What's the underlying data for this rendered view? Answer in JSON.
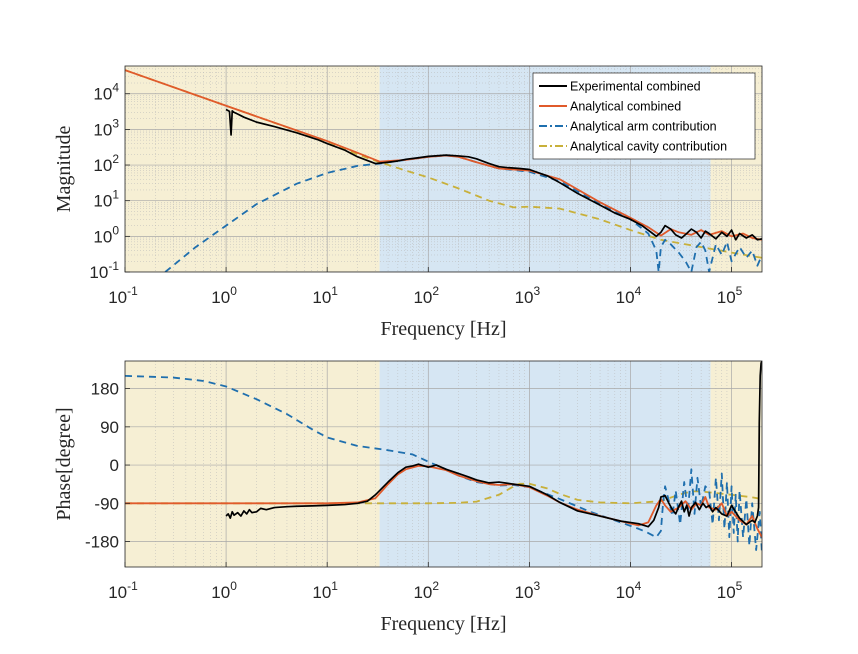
{
  "chart_data": [
    {
      "type": "line",
      "xscale": "log",
      "yscale": "log",
      "xlabel": "Frequency [Hz]",
      "ylabel": "Magnitude",
      "xlim": [
        0.1,
        200000
      ],
      "ylim": [
        0.1,
        60000
      ],
      "xticks": [
        {
          "base": "10",
          "exp": "-1",
          "value": 0.1
        },
        {
          "base": "10",
          "exp": "0",
          "value": 1
        },
        {
          "base": "10",
          "exp": "1",
          "value": 10
        },
        {
          "base": "10",
          "exp": "2",
          "value": 100
        },
        {
          "base": "10",
          "exp": "3",
          "value": 1000
        },
        {
          "base": "10",
          "exp": "4",
          "value": 10000
        },
        {
          "base": "10",
          "exp": "5",
          "value": 100000
        }
      ],
      "yticks": [
        {
          "base": "10",
          "exp": "-1",
          "value": 0.1
        },
        {
          "base": "10",
          "exp": "0",
          "value": 1
        },
        {
          "base": "10",
          "exp": "1",
          "value": 10
        },
        {
          "base": "10",
          "exp": "2",
          "value": 100
        },
        {
          "base": "10",
          "exp": "3",
          "value": 1000
        },
        {
          "base": "10",
          "exp": "4",
          "value": 10000
        }
      ],
      "grid": true,
      "regions": [
        {
          "x0": 0.1,
          "x1": 33,
          "color": "#f6efd4"
        },
        {
          "x0": 33,
          "x1": 62000,
          "color": "#d6e6f3"
        },
        {
          "x0": 62000,
          "x1": 200000,
          "color": "#f6efd4"
        }
      ],
      "legend": {
        "position": "top-right",
        "entries": [
          {
            "name": "Experimental combined",
            "color": "#000000",
            "dash": "solid"
          },
          {
            "name": "Analytical combined",
            "color": "#e05a2b",
            "dash": "solid"
          },
          {
            "name": "Analytical arm contribution",
            "color": "#1f6fae",
            "dash": "dashdot"
          },
          {
            "name": "Analytical cavity contribution",
            "color": "#c8b03a",
            "dash": "dashdot"
          }
        ]
      },
      "series": [
        {
          "name": "Analytical cavity contribution",
          "color": "#c8b03a",
          "dash": "dashed",
          "x": [
            0.1,
            1,
            10,
            20,
            33,
            60,
            100,
            200,
            400,
            700,
            1000,
            2000,
            5000,
            10000,
            20000,
            50000,
            100000,
            200000
          ],
          "y": [
            46000,
            4600,
            460,
            200,
            120,
            70,
            45,
            22,
            10,
            6.5,
            6.8,
            6,
            3,
            1.5,
            0.8,
            0.5,
            0.35,
            0.25
          ]
        },
        {
          "name": "Analytical arm contribution",
          "color": "#1f6fae",
          "dash": "dashed",
          "x": [
            0.25,
            0.5,
            1,
            2,
            5,
            10,
            20,
            33,
            60,
            100,
            150,
            200,
            300,
            500,
            1000,
            2000,
            5000,
            10000,
            15000,
            18000,
            19000,
            20000,
            22000,
            25000,
            30000,
            35000,
            40000,
            45000,
            50000,
            55000,
            60000,
            70000,
            80000,
            90000,
            100000,
            120000,
            140000,
            160000,
            180000,
            200000
          ],
          "y": [
            0.1,
            0.5,
            2,
            8,
            30,
            60,
            95,
            110,
            140,
            170,
            185,
            170,
            120,
            80,
            65,
            35,
            8,
            3,
            1.2,
            0.4,
            0.1,
            0.5,
            0.8,
            0.6,
            0.35,
            0.2,
            0.1,
            0.5,
            0.7,
            0.4,
            0.1,
            0.6,
            0.3,
            0.7,
            0.2,
            0.5,
            0.25,
            0.4,
            0.15,
            0.3
          ]
        },
        {
          "name": "Analytical combined",
          "color": "#e05a2b",
          "dash": "solid",
          "x": [
            0.1,
            1,
            10,
            20,
            33,
            60,
            100,
            150,
            200,
            300,
            500,
            1000,
            2000,
            5000,
            10000,
            15000,
            20000,
            25000,
            30000,
            40000,
            50000,
            60000,
            80000,
            100000,
            130000,
            160000,
            200000
          ],
          "y": [
            46000,
            4600,
            470,
            220,
            125,
            140,
            170,
            185,
            170,
            120,
            80,
            70,
            40,
            9,
            3.3,
            1.8,
            1.05,
            1.6,
            1.3,
            1.1,
            1.5,
            1.1,
            1.4,
            1.0,
            1.2,
            0.9,
            0.8
          ]
        },
        {
          "name": "Experimental combined",
          "color": "#000000",
          "dash": "solid",
          "x": [
            1,
            1.08,
            1.12,
            1.15,
            1.2,
            1.3,
            1.5,
            2,
            3,
            5,
            8,
            10,
            15,
            20,
            30,
            40,
            50,
            60,
            80,
            100,
            150,
            200,
            250,
            300,
            400,
            500,
            600,
            800,
            1000,
            1500,
            2000,
            3000,
            5000,
            7000,
            10000,
            13000,
            16000,
            18000,
            20000,
            22000,
            25000,
            28000,
            32000,
            36000,
            40000,
            45000,
            50000,
            55000,
            60000,
            70000,
            80000,
            90000,
            100000,
            110000,
            120000,
            140000,
            160000,
            180000,
            200000
          ],
          "y": [
            3600,
            3200,
            700,
            3300,
            3000,
            2700,
            2200,
            1600,
            1200,
            800,
            520,
            400,
            260,
            170,
            110,
            120,
            130,
            145,
            160,
            175,
            190,
            180,
            170,
            150,
            110,
            90,
            85,
            80,
            75,
            50,
            32,
            16,
            7.5,
            4.5,
            3.0,
            2.0,
            1.3,
            1.0,
            1.3,
            2.0,
            1.6,
            1.1,
            0.9,
            1.2,
            1.6,
            1.3,
            0.9,
            1.4,
            1.2,
            0.85,
            1.3,
            1.0,
            1.5,
            0.8,
            1.2,
            0.9,
            1.1,
            0.8,
            0.85
          ]
        }
      ]
    },
    {
      "type": "line",
      "xscale": "log",
      "xlabel": "Frequency [Hz]",
      "ylabel": "Phase[degree]",
      "xlim": [
        0.1,
        200000
      ],
      "ylim": [
        -240,
        245
      ],
      "xticks": [
        {
          "base": "10",
          "exp": "-1",
          "value": 0.1
        },
        {
          "base": "10",
          "exp": "0",
          "value": 1
        },
        {
          "base": "10",
          "exp": "1",
          "value": 10
        },
        {
          "base": "10",
          "exp": "2",
          "value": 100
        },
        {
          "base": "10",
          "exp": "3",
          "value": 1000
        },
        {
          "base": "10",
          "exp": "4",
          "value": 10000
        },
        {
          "base": "10",
          "exp": "5",
          "value": 100000
        }
      ],
      "yticks": [
        {
          "label": "180",
          "value": 180
        },
        {
          "label": "90",
          "value": 90
        },
        {
          "label": "0",
          "value": 0
        },
        {
          "label": "-90",
          "value": -90
        },
        {
          "label": "-180",
          "value": -180
        }
      ],
      "grid": true,
      "regions": [
        {
          "x0": 0.1,
          "x1": 33,
          "color": "#f6efd4"
        },
        {
          "x0": 33,
          "x1": 62000,
          "color": "#d6e6f3"
        },
        {
          "x0": 62000,
          "x1": 200000,
          "color": "#f6efd4"
        }
      ],
      "series": [
        {
          "name": "Analytical cavity contribution",
          "color": "#c8b03a",
          "dash": "dashed",
          "x": [
            0.1,
            10,
            100,
            200,
            300,
            500,
            700,
            800,
            1000,
            1500,
            2000,
            3000,
            5000,
            10000,
            20000,
            30000,
            40000,
            50000,
            70000,
            100000,
            150000,
            200000
          ],
          "y": [
            -90,
            -90,
            -90,
            -89,
            -86,
            -70,
            -50,
            -44,
            -44,
            -55,
            -68,
            -82,
            -88,
            -90,
            -85,
            -70,
            -62,
            -62,
            -66,
            -70,
            -75,
            -80
          ]
        },
        {
          "name": "Analytical arm contribution",
          "color": "#1f6fae",
          "dash": "dashed",
          "x": [
            0.1,
            0.3,
            0.6,
            1,
            2,
            4,
            7,
            10,
            20,
            40,
            70,
            100,
            150,
            200,
            300,
            500,
            700,
            1000,
            2000,
            4000,
            8000,
            12000,
            15000,
            18000,
            20000,
            21000,
            22000,
            24000,
            26000,
            28000,
            31000,
            34000,
            37000,
            40000,
            43000,
            46000,
            50000,
            55000,
            60000,
            65000,
            70000,
            75000,
            80000,
            85000,
            90000,
            95000,
            100000,
            105000,
            110000,
            115000,
            120000,
            130000,
            140000,
            150000,
            160000,
            175000,
            190000,
            200000
          ],
          "y": [
            210,
            206,
            198,
            185,
            155,
            120,
            85,
            65,
            45,
            35,
            25,
            8,
            -10,
            -25,
            -40,
            -48,
            -47,
            -52,
            -80,
            -110,
            -135,
            -150,
            -160,
            -170,
            -155,
            -90,
            -50,
            -85,
            -120,
            -60,
            -140,
            -40,
            -110,
            -10,
            -115,
            -30,
            -100,
            -50,
            -60,
            -140,
            -30,
            -130,
            -20,
            -150,
            -40,
            -170,
            -50,
            -160,
            -70,
            -180,
            -60,
            -170,
            -80,
            -190,
            -90,
            -200,
            -110,
            -210
          ]
        },
        {
          "name": "Analytical combined",
          "color": "#e05a2b",
          "dash": "solid",
          "x": [
            0.1,
            1,
            10,
            20,
            30,
            40,
            50,
            60,
            80,
            100,
            150,
            200,
            300,
            400,
            500,
            700,
            1000,
            1500,
            2000,
            3000,
            5000,
            8000,
            12000,
            15000,
            18000,
            20000,
            22000,
            25000,
            30000,
            35000,
            40000,
            45000,
            50000,
            55000,
            60000,
            70000,
            80000,
            90000,
            100000,
            120000,
            140000,
            160000,
            180000,
            200000
          ],
          "y": [
            -90,
            -90,
            -90,
            -88,
            -78,
            -45,
            -22,
            -10,
            -2,
            -3,
            -12,
            -25,
            -38,
            -45,
            -47,
            -45,
            -52,
            -72,
            -88,
            -105,
            -120,
            -132,
            -142,
            -135,
            -95,
            -80,
            -95,
            -110,
            -100,
            -85,
            -105,
            -90,
            -95,
            -75,
            -100,
            -105,
            -90,
            -120,
            -110,
            -130,
            -140,
            -120,
            -150,
            -170
          ]
        },
        {
          "name": "Experimental combined",
          "color": "#000000",
          "dash": "solid",
          "x": [
            1,
            1.05,
            1.1,
            1.15,
            1.2,
            1.3,
            1.4,
            1.5,
            1.6,
            1.7,
            1.8,
            2,
            2.2,
            2.5,
            3,
            4,
            5,
            7,
            10,
            15,
            20,
            25,
            30,
            40,
            50,
            60,
            70,
            80,
            100,
            120,
            150,
            200,
            250,
            300,
            400,
            500,
            700,
            1000,
            1500,
            2000,
            3000,
            5000,
            8000,
            12000,
            15000,
            17000,
            19000,
            20000,
            22000,
            24000,
            26000,
            28000,
            30000,
            32000,
            34000,
            36000,
            38000,
            40000,
            44000,
            48000,
            52000,
            56000,
            60000,
            65000,
            70000,
            80000,
            90000,
            100000,
            120000,
            140000,
            160000,
            170000,
            180000,
            185000,
            188000,
            192000,
            196000,
            200000
          ],
          "y": [
            -120,
            -115,
            -125,
            -110,
            -118,
            -112,
            -120,
            -108,
            -115,
            -105,
            -112,
            -110,
            -102,
            -105,
            -100,
            -98,
            -97,
            -96,
            -95,
            -93,
            -90,
            -85,
            -70,
            -40,
            -18,
            -5,
            -2,
            2,
            -5,
            0,
            -10,
            -20,
            -28,
            -35,
            -42,
            -40,
            -45,
            -50,
            -70,
            -88,
            -108,
            -120,
            -132,
            -138,
            -145,
            -130,
            -100,
            -75,
            -72,
            -90,
            -105,
            -115,
            -98,
            -85,
            -110,
            -95,
            -120,
            -100,
            -88,
            -105,
            -90,
            -100,
            -95,
            -110,
            -100,
            -115,
            -120,
            -95,
            -125,
            -140,
            -130,
            -135,
            -120,
            -100,
            100,
            210,
            240,
            245
          ]
        }
      ]
    }
  ]
}
